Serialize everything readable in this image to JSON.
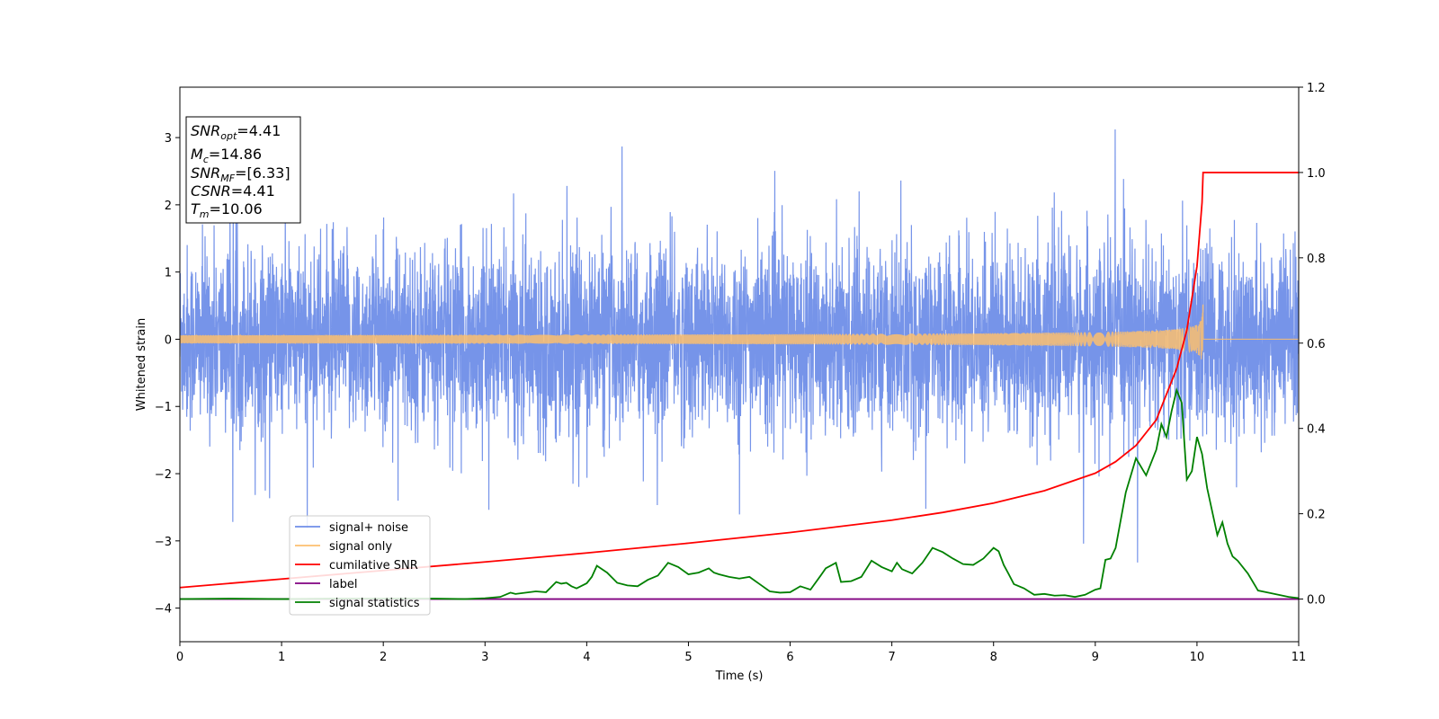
{
  "chart_data": {
    "type": "line",
    "xlabel": "Time (s)",
    "ylabel": "Whitened strain",
    "xlim": [
      0,
      11
    ],
    "ylim_left": [
      -4.5,
      3.75
    ],
    "ylim_right": [
      -0.1,
      1.2
    ],
    "x_ticks": [
      0,
      1,
      2,
      3,
      4,
      5,
      6,
      7,
      8,
      9,
      10,
      11
    ],
    "y_ticks_left": [
      -4,
      -3,
      -2,
      -1,
      0,
      1,
      2,
      3
    ],
    "y_tick_labels_left": [
      "−4",
      "−3",
      "−2",
      "−1",
      "0",
      "1",
      "2",
      "3"
    ],
    "y_ticks_right": [
      0.0,
      0.2,
      0.4,
      0.6,
      0.8,
      1.0,
      1.2
    ],
    "y_tick_labels_right": [
      "0.0",
      "0.2",
      "0.4",
      "0.6",
      "0.8",
      "1.0",
      "1.2"
    ],
    "legend_position": "lower-left",
    "grid": false,
    "annotation": {
      "snr_opt": {
        "label": "SNR",
        "sub": "opt",
        "value": "=4.41"
      },
      "mc": {
        "label": "M",
        "sub": "c",
        "value": "=14.86"
      },
      "snr_mf": {
        "label": "SNR",
        "sub": "MF",
        "value": "=[6.33]"
      },
      "csnr": {
        "label": "CSNR",
        "value": "=4.41"
      },
      "tm": {
        "label": "T",
        "sub": "m",
        "value": "=10.06"
      }
    },
    "series": [
      {
        "name": "signal+ noise",
        "axis": "left",
        "color": "#6f8ee8",
        "noise_std": 0.95,
        "noise_max": 3.4,
        "noise_min": -3.5
      },
      {
        "name": "signal only",
        "axis": "left",
        "color": "#fdbf6f",
        "merger_time": 10.06,
        "peak_amplitude": 0.65
      },
      {
        "name": "cumilative SNR",
        "axis": "right",
        "color": "#ff0000",
        "x": [
          0,
          1,
          2,
          3,
          4,
          5,
          6,
          7,
          7.5,
          8,
          8.5,
          9,
          9.2,
          9.4,
          9.6,
          9.8,
          9.9,
          10.0,
          10.05,
          10.06,
          11
        ],
        "y": [
          0.027,
          0.047,
          0.067,
          0.087,
          0.108,
          0.131,
          0.156,
          0.185,
          0.203,
          0.225,
          0.254,
          0.295,
          0.322,
          0.36,
          0.42,
          0.54,
          0.63,
          0.78,
          0.93,
          1.0,
          1.0
        ]
      },
      {
        "name": "label",
        "axis": "right",
        "color": "#800080",
        "x": [
          0,
          11
        ],
        "y": [
          0.0,
          0.0
        ]
      },
      {
        "name": "signal statistics",
        "axis": "right",
        "color": "#008000",
        "x": [
          0,
          0.5,
          1,
          1.5,
          2,
          2.5,
          2.8,
          3.0,
          3.15,
          3.25,
          3.3,
          3.5,
          3.6,
          3.7,
          3.75,
          3.8,
          3.85,
          3.9,
          4.0,
          4.05,
          4.1,
          4.2,
          4.3,
          4.4,
          4.5,
          4.6,
          4.7,
          4.8,
          4.9,
          5.0,
          5.1,
          5.2,
          5.25,
          5.3,
          5.4,
          5.5,
          5.6,
          5.7,
          5.8,
          5.9,
          6.0,
          6.1,
          6.2,
          6.3,
          6.35,
          6.45,
          6.5,
          6.6,
          6.7,
          6.8,
          6.9,
          7.0,
          7.05,
          7.1,
          7.2,
          7.3,
          7.4,
          7.5,
          7.6,
          7.7,
          7.8,
          7.9,
          8.0,
          8.05,
          8.1,
          8.15,
          8.2,
          8.3,
          8.4,
          8.5,
          8.6,
          8.7,
          8.8,
          8.9,
          9.0,
          9.05,
          9.1,
          9.15,
          9.2,
          9.3,
          9.4,
          9.5,
          9.6,
          9.65,
          9.7,
          9.75,
          9.8,
          9.85,
          9.9,
          9.95,
          10.0,
          10.05,
          10.1,
          10.2,
          10.25,
          10.3,
          10.35,
          10.4,
          10.5,
          10.6,
          10.7,
          10.8,
          10.9,
          11.0
        ],
        "y": [
          0.0,
          0.001,
          0.0,
          0.001,
          0.001,
          0.001,
          0.0,
          0.002,
          0.005,
          0.015,
          0.012,
          0.018,
          0.016,
          0.04,
          0.036,
          0.038,
          0.03,
          0.025,
          0.037,
          0.052,
          0.078,
          0.062,
          0.038,
          0.032,
          0.03,
          0.045,
          0.055,
          0.085,
          0.075,
          0.058,
          0.062,
          0.072,
          0.062,
          0.058,
          0.052,
          0.048,
          0.052,
          0.035,
          0.018,
          0.015,
          0.016,
          0.03,
          0.022,
          0.055,
          0.072,
          0.085,
          0.04,
          0.042,
          0.052,
          0.09,
          0.075,
          0.065,
          0.085,
          0.07,
          0.06,
          0.085,
          0.12,
          0.11,
          0.095,
          0.082,
          0.08,
          0.095,
          0.12,
          0.112,
          0.08,
          0.058,
          0.035,
          0.025,
          0.01,
          0.012,
          0.008,
          0.009,
          0.005,
          0.01,
          0.022,
          0.025,
          0.092,
          0.095,
          0.12,
          0.25,
          0.33,
          0.29,
          0.35,
          0.41,
          0.38,
          0.44,
          0.49,
          0.46,
          0.28,
          0.3,
          0.38,
          0.34,
          0.26,
          0.15,
          0.18,
          0.13,
          0.1,
          0.09,
          0.06,
          0.02,
          0.015,
          0.01,
          0.005,
          0.002
        ]
      }
    ]
  }
}
